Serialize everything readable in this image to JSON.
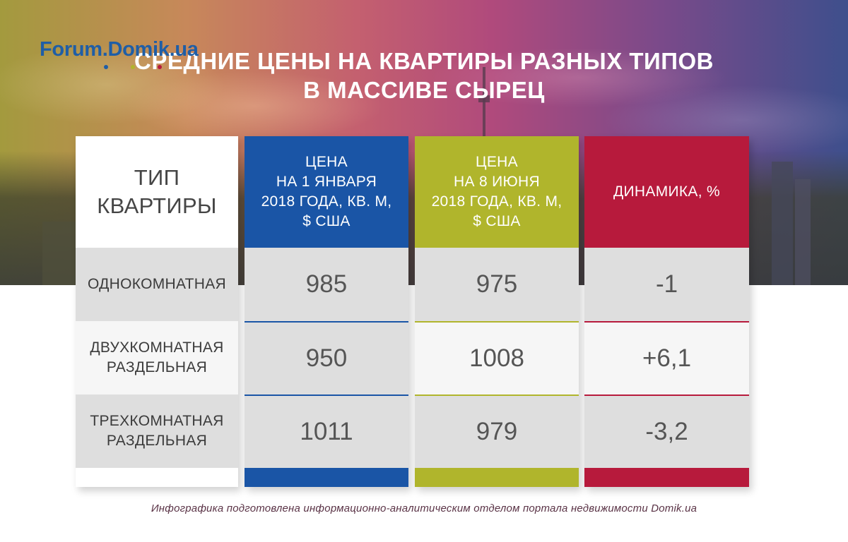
{
  "logo": {
    "text": "Forum.Domik.ua",
    "dot_colors": [
      "#1f5ea6",
      "#b0b52c",
      "#b71a3c"
    ]
  },
  "title": {
    "line1": "СРЕДНИЕ ЦЕНЫ НА КВАРТИРЫ РАЗНЫХ ТИПОВ",
    "line2": "В МАССИВЕ СЫРЕЦ"
  },
  "table": {
    "headers": {
      "type": [
        "ТИП",
        "КВАРТИРЫ"
      ],
      "jan": [
        "ЦЕНА",
        "НА 1 ЯНВАРЯ",
        "2018 ГОДА, КВ. М,",
        "$ США"
      ],
      "jun": [
        "ЦЕНА",
        "НА 8 ИЮНЯ",
        "2018 ГОДА, КВ. М,",
        "$ США"
      ],
      "dyn": [
        "ДИНАМИКА, %"
      ]
    },
    "rows": [
      {
        "type": [
          "ОДНОКОМНАТНАЯ"
        ],
        "jan": "985",
        "jun": "975",
        "dyn": "-1"
      },
      {
        "type": [
          "ДВУХКОМНАТНАЯ",
          "РАЗДЕЛЬНАЯ"
        ],
        "jan": "950",
        "jun": "1008",
        "dyn": "+6,1"
      },
      {
        "type": [
          "ТРЕХКОМНАТНАЯ",
          "РАЗДЕЛЬНАЯ"
        ],
        "jan": "1011",
        "jun": "979",
        "dyn": "-3,2"
      }
    ]
  },
  "colors": {
    "jan": "#1a55a6",
    "jun": "#b0b52c",
    "dyn": "#b71a3c"
  },
  "credit": "Инфографика подготовлена информационно-аналитическим отделом портала недвижимости Domik.ua"
}
